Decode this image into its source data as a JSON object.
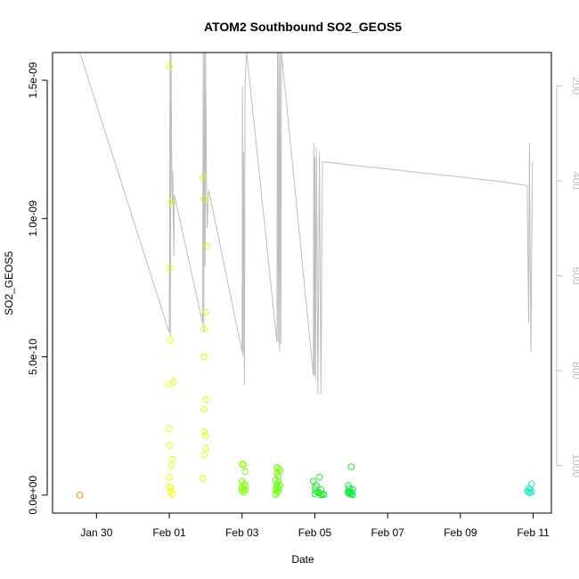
{
  "chart_data": {
    "type": "scatter",
    "title": "ATOM2 Southbound SO2_GEOS5",
    "xlabel": "Date",
    "ylabel": "SO2_GEOS5",
    "x_ticks": [
      "Jan 30",
      "Feb 01",
      "Feb 03",
      "Feb 05",
      "Feb 07",
      "Feb 09",
      "Feb 11"
    ],
    "y_ticks": [
      "0.0e+00",
      "5.0e-10",
      "1.0e-09",
      "1.5e-09"
    ],
    "y2_ticks": [
      "200",
      "400",
      "600",
      "800",
      "1000"
    ],
    "xlim": [
      "2016-01-28T19:00",
      "2016-02-11T12:00"
    ],
    "ylim": [
      -6.5e-11,
      1.6e-09
    ],
    "y2lim": [
      1100,
      130
    ],
    "grid": false,
    "colors": {
      "cluster_orange": "#ff8c00",
      "cluster_yellow": "#f0ff00",
      "cluster_green_a": "#7fff00",
      "cluster_green_b": "#22e800",
      "cluster_green_c": "#16e640",
      "cluster_cyan": "#2ee0c8",
      "pressure_line": "#bdbdbd"
    },
    "series": [
      {
        "color": "#ff8c00",
        "points": [
          [
            "2016-01-29T13:00",
            0.0
          ]
        ]
      },
      {
        "color": "#e8ff00",
        "points": [
          [
            "2016-02-01T00:00",
            1.55e-09
          ],
          [
            "2016-02-01T01:00",
            1.06e-09
          ],
          [
            "2016-02-01T00:30",
            8.2e-10
          ],
          [
            "2016-02-01T00:45",
            5.6e-10
          ],
          [
            "2016-02-01T00:00",
            4e-10
          ],
          [
            "2016-02-01T03:00",
            4.1e-10
          ],
          [
            "2016-02-01T00:00",
            2.4e-10
          ],
          [
            "2016-02-01T00:00",
            1.8e-10
          ],
          [
            "2016-02-01T02:00",
            1.3e-10
          ],
          [
            "2016-02-01T01:00",
            1.05e-10
          ],
          [
            "2016-02-01T00:00",
            6.5e-11
          ],
          [
            "2016-02-01T00:00",
            3e-11
          ],
          [
            "2016-02-01T01:00",
            2.8e-11
          ],
          [
            "2016-02-01T01:00",
            1e-11
          ],
          [
            "2016-02-01T02:00",
            2e-12
          ]
        ]
      },
      {
        "color": "#d8ff00",
        "points": [
          [
            "2016-02-01T22:00",
            1.15e-09
          ],
          [
            "2016-02-01T23:00",
            1.07e-09
          ],
          [
            "2016-02-02T01:00",
            9e-10
          ],
          [
            "2016-02-02T00:00",
            6.6e-10
          ],
          [
            "2016-02-01T23:00",
            6e-10
          ],
          [
            "2016-02-01T23:00",
            5e-10
          ],
          [
            "2016-02-02T00:00",
            3.45e-10
          ],
          [
            "2016-02-01T23:00",
            3.1e-10
          ],
          [
            "2016-02-01T23:00",
            2.3e-10
          ],
          [
            "2016-02-02T00:00",
            2.15e-10
          ],
          [
            "2016-02-02T00:00",
            1.7e-10
          ],
          [
            "2016-02-01T23:00",
            1.45e-10
          ],
          [
            "2016-02-01T22:00",
            6e-11
          ]
        ]
      },
      {
        "color": "#7fff00",
        "points": [
          [
            "2016-02-03T00:00",
            1.12e-10
          ],
          [
            "2016-02-03T01:00",
            1.1e-10
          ],
          [
            "2016-02-03T02:00",
            8.5e-11
          ],
          [
            "2016-02-03T00:00",
            5e-11
          ],
          [
            "2016-02-03T01:00",
            4e-11
          ],
          [
            "2016-02-03T02:00",
            3.5e-11
          ],
          [
            "2016-02-03T00:00",
            2.8e-11
          ],
          [
            "2016-02-03T01:00",
            2e-11
          ],
          [
            "2016-02-03T02:00",
            1.8e-11
          ],
          [
            "2016-02-03T00:00",
            1.5e-11
          ],
          [
            "2016-02-03T01:00",
            1e-11
          ]
        ]
      },
      {
        "color": "#66ff00",
        "points": [
          [
            "2016-02-03T23:00",
            1e-10
          ],
          [
            "2016-02-04T00:00",
            9.5e-11
          ],
          [
            "2016-02-04T01:00",
            9e-11
          ],
          [
            "2016-02-03T23:00",
            8e-11
          ],
          [
            "2016-02-04T00:00",
            7e-11
          ],
          [
            "2016-02-03T22:00",
            5.5e-11
          ],
          [
            "2016-02-04T00:00",
            5e-11
          ],
          [
            "2016-02-03T23:00",
            4e-11
          ],
          [
            "2016-02-04T01:00",
            3.5e-11
          ],
          [
            "2016-02-03T23:00",
            3e-11
          ],
          [
            "2016-02-04T00:00",
            2.5e-11
          ],
          [
            "2016-02-03T22:00",
            2e-11
          ],
          [
            "2016-02-04T00:00",
            1.5e-11
          ],
          [
            "2016-02-03T23:00",
            1e-11
          ],
          [
            "2016-02-03T22:00",
            2e-12
          ]
        ]
      },
      {
        "color": "#22e830",
        "points": [
          [
            "2016-02-05T03:00",
            6.5e-11
          ],
          [
            "2016-02-04T23:00",
            5e-11
          ],
          [
            "2016-02-05T01:00",
            3.5e-11
          ],
          [
            "2016-02-05T00:00",
            2.5e-11
          ],
          [
            "2016-02-05T04:00",
            2e-11
          ],
          [
            "2016-02-05T01:00",
            1.5e-11
          ],
          [
            "2016-02-05T02:00",
            1e-11
          ],
          [
            "2016-02-05T03:00",
            8e-12
          ],
          [
            "2016-02-05T00:00",
            5e-12
          ],
          [
            "2016-02-05T05:00",
            3e-12
          ],
          [
            "2016-02-05T06:00",
            2e-12
          ],
          [
            "2016-02-05T04:00",
            1e-12
          ]
        ]
      },
      {
        "color": "#16e640",
        "points": [
          [
            "2016-02-06T00:00",
            1.02e-10
          ],
          [
            "2016-02-05T22:00",
            3.5e-11
          ],
          [
            "2016-02-05T23:00",
            2.5e-11
          ],
          [
            "2016-02-06T01:00",
            2e-11
          ],
          [
            "2016-02-05T22:00",
            1.5e-11
          ],
          [
            "2016-02-05T23:00",
            1.2e-11
          ],
          [
            "2016-02-06T00:00",
            1e-11
          ],
          [
            "2016-02-05T22:00",
            8e-12
          ],
          [
            "2016-02-05T23:00",
            5e-12
          ],
          [
            "2016-02-06T00:00",
            3e-12
          ],
          [
            "2016-02-06T01:00",
            1e-12
          ]
        ]
      },
      {
        "color": "#2ee0c8",
        "points": [
          [
            "2016-02-10T23:00",
            4e-11
          ],
          [
            "2016-02-10T21:00",
            2.5e-11
          ],
          [
            "2016-02-10T22:00",
            2e-11
          ],
          [
            "2016-02-10T20:00",
            1.5e-11
          ],
          [
            "2016-02-10T23:00",
            1.2e-11
          ],
          [
            "2016-02-10T21:00",
            1e-11
          ],
          [
            "2016-02-10T22:00",
            8e-12
          ]
        ]
      }
    ],
    "pressure_series": {
      "color": "#bdbdbd",
      "axis": "right",
      "points": [
        [
          "2016-01-29T13:00",
          130
        ],
        [
          "2016-02-01T00:00",
          720
        ],
        [
          "2016-02-01T00:30",
          130
        ],
        [
          "2016-02-01T00:45",
          730
        ],
        [
          "2016-02-01T01:10",
          130
        ],
        [
          "2016-02-01T01:30",
          330
        ],
        [
          "2016-02-01T02:00",
          450
        ],
        [
          "2016-02-01T02:15",
          380
        ],
        [
          "2016-02-01T03:00",
          560
        ],
        [
          "2016-02-01T03:20",
          430
        ],
        [
          "2016-02-01T22:00",
          700
        ],
        [
          "2016-02-01T22:20",
          130
        ],
        [
          "2016-02-01T22:45",
          720
        ],
        [
          "2016-02-01T23:10",
          130
        ],
        [
          "2016-02-01T23:40",
          580
        ],
        [
          "2016-02-02T00:00",
          130
        ],
        [
          "2016-02-02T00:30",
          400
        ],
        [
          "2016-02-02T01:00",
          500
        ],
        [
          "2016-02-02T01:30",
          440
        ],
        [
          "2016-02-02T02:00",
          420
        ],
        [
          "2016-02-03T00:00",
          760
        ],
        [
          "2016-02-03T00:15",
          200
        ],
        [
          "2016-02-03T00:40",
          770
        ],
        [
          "2016-02-03T01:00",
          340
        ],
        [
          "2016-02-03T01:30",
          830
        ],
        [
          "2016-02-03T02:00",
          190
        ],
        [
          "2016-02-03T03:00",
          130
        ],
        [
          "2016-02-03T23:00",
          740
        ],
        [
          "2016-02-03T23:20",
          130
        ],
        [
          "2016-02-03T23:50",
          740
        ],
        [
          "2016-02-04T00:10",
          130
        ],
        [
          "2016-02-04T00:40",
          760
        ],
        [
          "2016-02-04T01:00",
          130
        ],
        [
          "2016-02-04T01:30",
          745
        ],
        [
          "2016-02-04T02:00",
          130
        ],
        [
          "2016-02-04T23:00",
          810
        ],
        [
          "2016-02-04T23:20",
          320
        ],
        [
          "2016-02-04T23:40",
          810
        ],
        [
          "2016-02-05T00:00",
          350
        ],
        [
          "2016-02-05T00:30",
          820
        ],
        [
          "2016-02-05T01:00",
          330
        ],
        [
          "2016-02-05T02:00",
          850
        ],
        [
          "2016-02-05T03:00",
          340
        ],
        [
          "2016-02-05T04:00",
          850
        ],
        [
          "2016-02-05T05:00",
          360
        ],
        [
          "2016-02-09T22:00",
          400
        ],
        [
          "2016-02-10T20:00",
          410
        ],
        [
          "2016-02-10T21:00",
          700
        ],
        [
          "2016-02-10T21:30",
          320
        ],
        [
          "2016-02-10T22:30",
          760
        ],
        [
          "2016-02-10T23:30",
          360
        ]
      ]
    }
  }
}
